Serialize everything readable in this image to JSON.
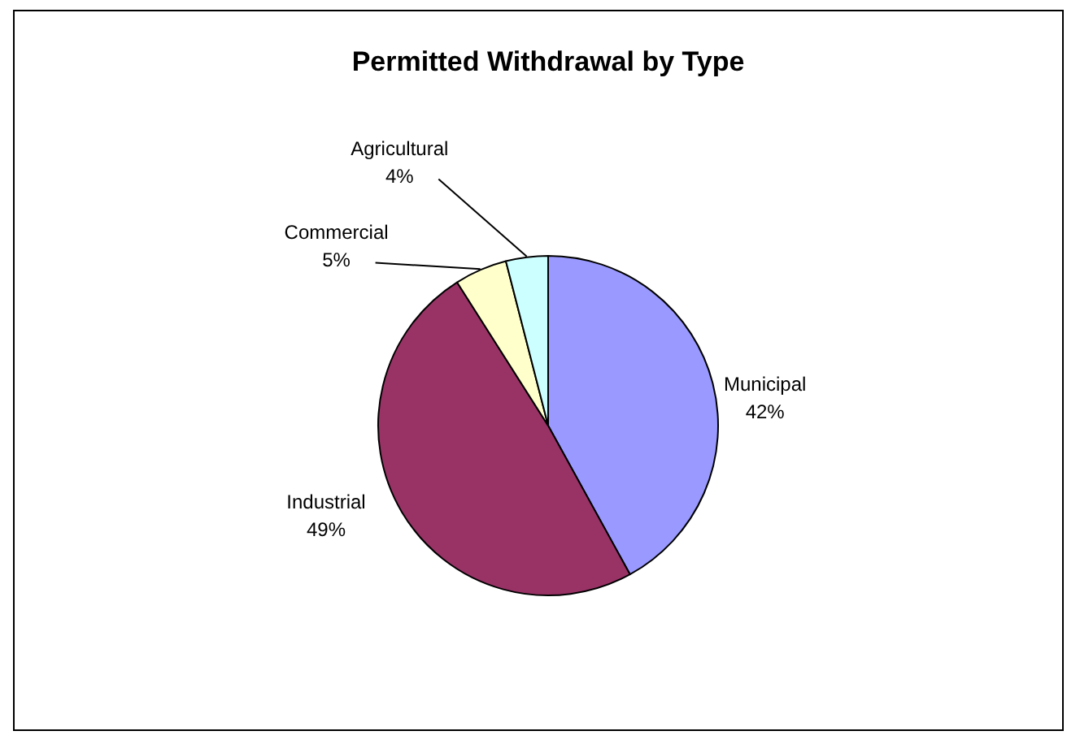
{
  "chart_data": {
    "type": "pie",
    "title": "Permitted Withdrawal by Type",
    "categories": [
      "Municipal",
      "Industrial",
      "Commercial",
      "Agricultural"
    ],
    "values": [
      42,
      49,
      5,
      4
    ],
    "value_labels": [
      "42%",
      "49%",
      "5%",
      "4%"
    ],
    "colors": [
      "#9999ff",
      "#993366",
      "#ffffcc",
      "#ccffff"
    ],
    "legend": false
  }
}
